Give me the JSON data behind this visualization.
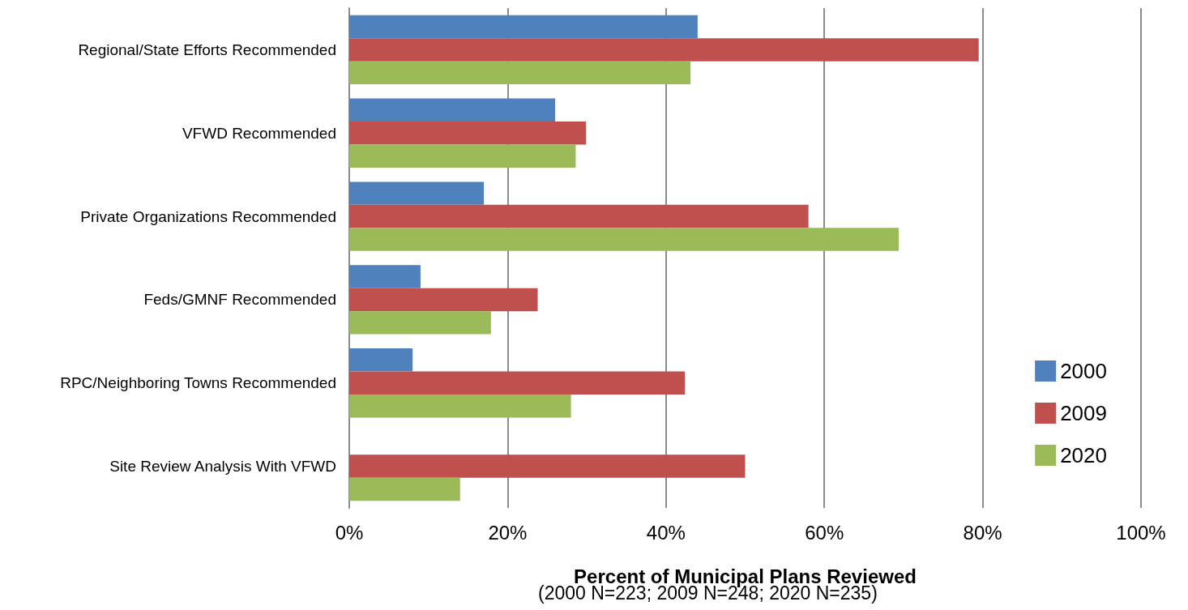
{
  "chart_data": {
    "type": "bar",
    "orientation": "horizontal",
    "categories": [
      "Regional/State Efforts Recommended",
      "VFWD Recommended",
      "Private Organizations Recommended",
      "Feds/GMNF Recommended",
      "RPC/Neighboring Towns Recommended",
      "Site Review Analysis With VFWD"
    ],
    "series": [
      {
        "name": "2000",
        "color": "#4f81bd",
        "values": [
          44,
          26,
          17,
          9,
          8,
          null
        ]
      },
      {
        "name": "2009",
        "color": "#c0504d",
        "values": [
          79.5,
          29.9,
          58,
          23.8,
          42.4,
          50
        ]
      },
      {
        "name": "2020",
        "color": "#9bbb59",
        "values": [
          43.1,
          28.6,
          69.4,
          17.9,
          28,
          14
        ]
      }
    ],
    "xlabel": "Percent of Municipal Plans Reviewed",
    "annotations": [
      "(2000 N=223; 2009 N=248; 2020 N=235)"
    ],
    "xlim": [
      0,
      100
    ],
    "xticks": [
      {
        "value": 0,
        "label": "0%"
      },
      {
        "value": 20,
        "label": "20%"
      },
      {
        "value": 40,
        "label": "40%"
      },
      {
        "value": 60,
        "label": "60%"
      },
      {
        "value": 80,
        "label": "80%"
      },
      {
        "value": 100,
        "label": "100%"
      }
    ],
    "grid": "x",
    "legend": "right"
  }
}
